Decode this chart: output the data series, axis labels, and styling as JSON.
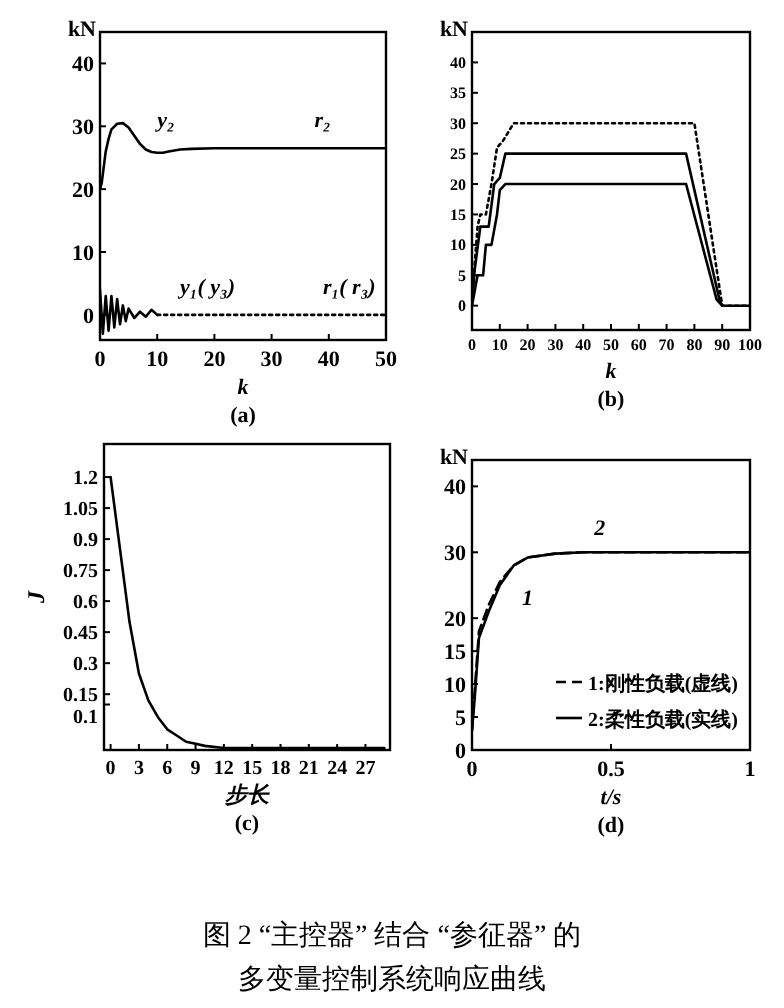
{
  "chart_data": [
    {
      "type": "line",
      "ylabel": "kN",
      "xlabel": "k",
      "xlim": [
        0,
        50
      ],
      "xticks": [
        0,
        10,
        20,
        30,
        40,
        50
      ],
      "ylim": [
        -4,
        45
      ],
      "yticks": [
        0,
        10,
        20,
        30,
        40
      ],
      "grid": false,
      "marker": "none",
      "series": [
        {
          "color": "#000000",
          "line_style": "solid",
          "x": [
            0,
            0.3,
            1,
            1.5,
            2,
            3,
            4,
            5,
            6,
            7,
            8,
            9,
            10,
            11,
            12,
            14,
            16,
            20,
            50
          ],
          "values": [
            20,
            21,
            26,
            28,
            29.5,
            30.4,
            30.5,
            29.8,
            28.5,
            27.2,
            26.3,
            25.9,
            25.8,
            25.8,
            26,
            26.3,
            26.4,
            26.5,
            26.5
          ]
        },
        {
          "color": "#000000",
          "line_style": "solid",
          "x": [
            0,
            0.5,
            1,
            1.5,
            2,
            2.5,
            3,
            3.5,
            4,
            4.5,
            5,
            6,
            7,
            8,
            9,
            10
          ],
          "values": [
            4,
            -3,
            3,
            -2.5,
            3,
            -2,
            2.5,
            -1.5,
            1.5,
            -1,
            1,
            -0.5,
            0.5,
            -0.3,
            0.8,
            0
          ]
        },
        {
          "color": "#000000",
          "line_style": "dotted",
          "x": [
            10,
            50
          ],
          "values": [
            0,
            0
          ]
        }
      ],
      "annotations": [
        "y₂",
        "r₂",
        "y₁( y₃)",
        "r₁( r₃)",
        "(a)"
      ]
    },
    {
      "type": "line",
      "ylabel": "kN",
      "xlabel": "k",
      "xlim": [
        0,
        100
      ],
      "xticks": [
        0,
        10,
        20,
        30,
        40,
        50,
        60,
        70,
        80,
        90,
        100
      ],
      "ylim": [
        -4,
        45
      ],
      "yticks": [
        0,
        5,
        10,
        15,
        20,
        25,
        30,
        35,
        40
      ],
      "grid": false,
      "marker": "none",
      "series": [
        {
          "color": "#000000",
          "line_style": "dotted",
          "x": [
            0,
            2,
            3,
            5,
            7,
            9,
            11,
            15,
            80,
            90,
            100
          ],
          "values": [
            1,
            13,
            15,
            15,
            20,
            26,
            27,
            30,
            30,
            0,
            0
          ]
        },
        {
          "color": "#000000",
          "line_style": "solid",
          "x": [
            0,
            1,
            3,
            6,
            8,
            10,
            12,
            77,
            89,
            90
          ],
          "values": [
            1,
            6,
            13,
            13,
            20,
            21,
            25,
            25,
            1,
            0
          ]
        },
        {
          "color": "#000000",
          "line_style": "solid",
          "x": [
            0,
            2,
            4,
            5,
            7,
            9,
            10,
            12,
            77,
            88,
            90,
            100
          ],
          "values": [
            0,
            5,
            5,
            10,
            10,
            15,
            19,
            20,
            20,
            1,
            0,
            0
          ]
        }
      ],
      "annotations": [
        "(b)"
      ]
    },
    {
      "type": "line",
      "ylabel": "J",
      "xlabel": "步长",
      "xlim": [
        -0.7,
        29.6
      ],
      "xticks": [
        0,
        3,
        6,
        9,
        12,
        15,
        18,
        21,
        24,
        27
      ],
      "ylim": [
        -0.12,
        1.36
      ],
      "yticks": [
        1.2,
        1.05,
        0.9,
        0.75,
        0.6,
        0.45,
        0.3,
        0.15,
        0.1
      ],
      "grid": false,
      "marker": "none",
      "series": [
        {
          "color": "#000000",
          "line_style": "solid",
          "x": [
            0,
            1,
            2,
            3,
            4,
            5,
            6,
            7,
            8,
            9,
            10,
            12,
            15,
            29
          ],
          "values": [
            1.2,
            0.85,
            0.5,
            0.25,
            0.12,
            0.04,
            -0.02,
            -0.05,
            -0.08,
            -0.09,
            -0.1,
            -0.11,
            -0.11,
            -0.11
          ]
        }
      ],
      "annotations": [
        "(c)"
      ]
    },
    {
      "type": "line",
      "ylabel": "kN",
      "xlabel": "t/s",
      "xlim": [
        0,
        1
      ],
      "xticks": [
        0,
        0.5,
        1
      ],
      "ylim": [
        0,
        44
      ],
      "yticks": [
        0,
        5,
        10,
        15,
        20,
        30,
        40
      ],
      "grid": false,
      "marker": "none",
      "legend": "bottom right",
      "series": [
        {
          "name": "1:刚性负载(虚线)",
          "color": "#000000",
          "line_style": "dashed",
          "x": [
            0,
            0.01,
            0.025,
            0.06,
            0.1,
            0.15,
            0.2,
            0.3,
            0.4,
            1
          ],
          "values": [
            3,
            9,
            18,
            22,
            25.5,
            28,
            29.2,
            29.8,
            30,
            30
          ]
        },
        {
          "name": "2:柔性负载(实线)",
          "color": "#000000",
          "line_style": "solid",
          "x": [
            0,
            0.01,
            0.025,
            0.06,
            0.1,
            0.15,
            0.2,
            0.3,
            0.4,
            1
          ],
          "values": [
            3,
            8,
            17,
            21,
            25,
            28,
            29.2,
            29.8,
            30,
            30
          ]
        }
      ],
      "annotations": [
        "1",
        "2",
        "(d)",
        "图 2 “主控器” 结合 “参征器” 的",
        "多变量控制系统响应曲线"
      ]
    }
  ]
}
